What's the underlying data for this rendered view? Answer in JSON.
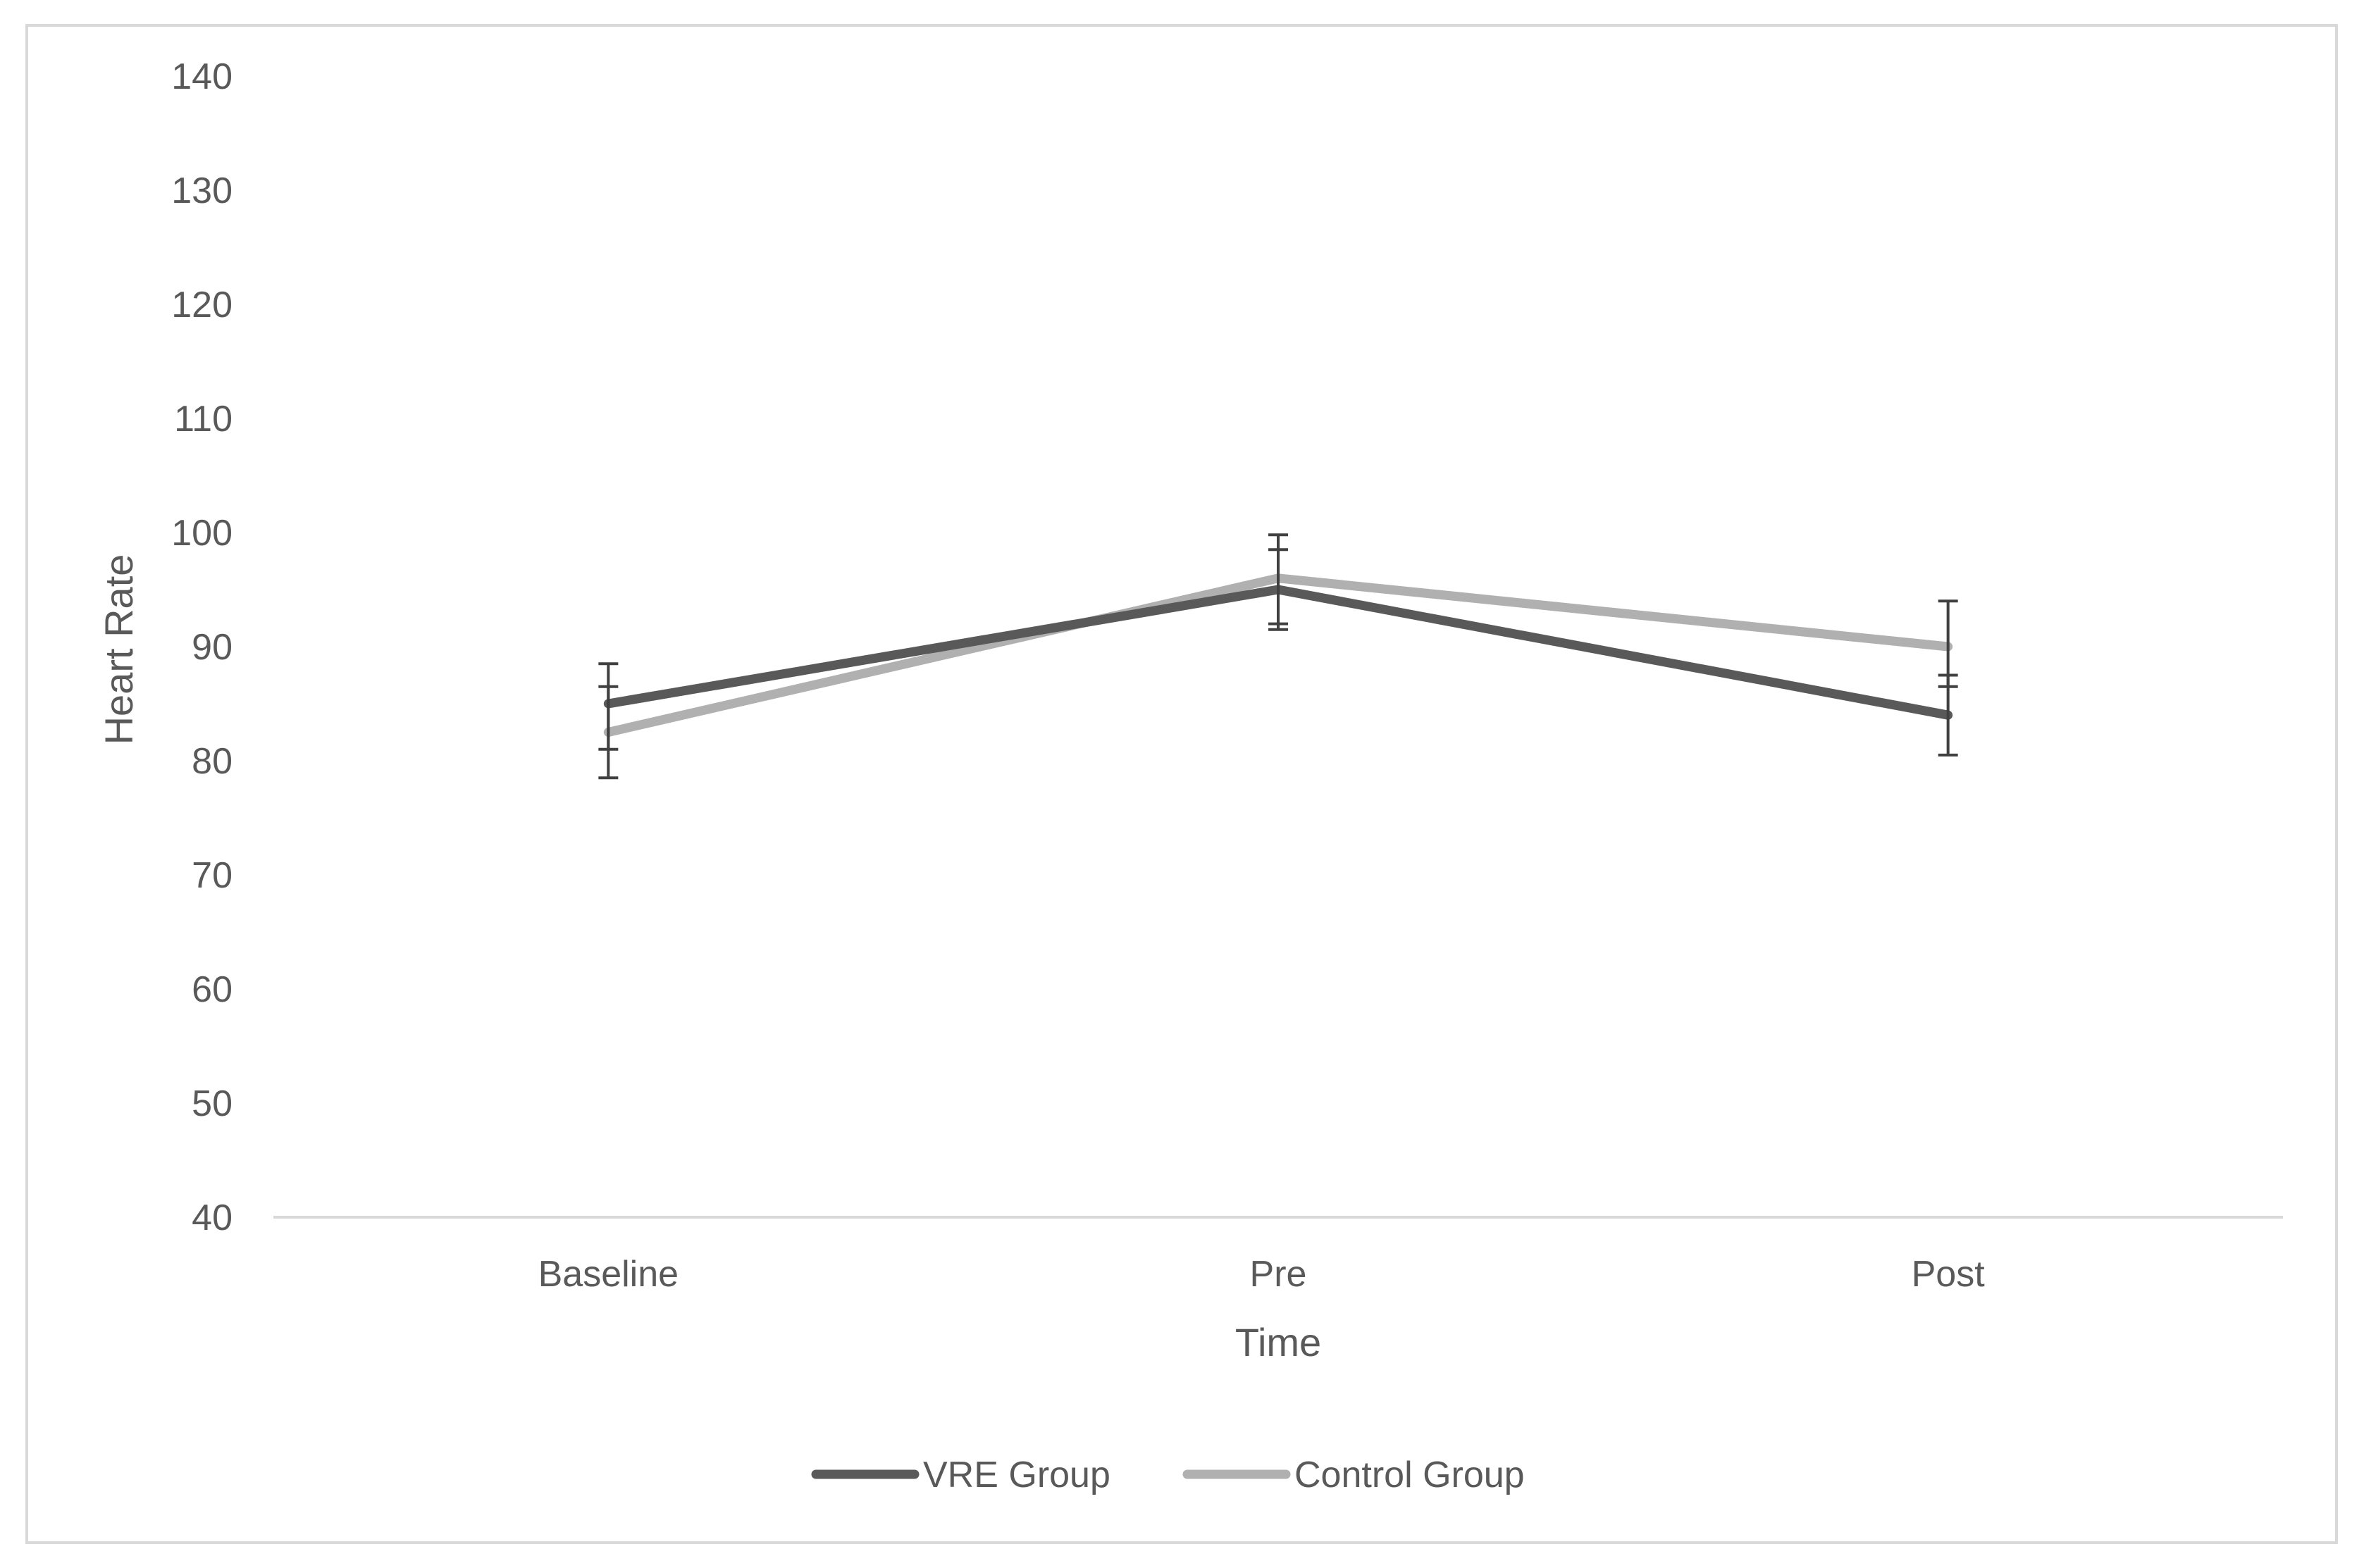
{
  "chart_data": {
    "type": "line",
    "title": "",
    "xlabel": "Time",
    "ylabel": "Heart Rate",
    "categories": [
      "Baseline",
      "Pre",
      "Post"
    ],
    "ylim": [
      40,
      140
    ],
    "yticks": [
      40,
      50,
      60,
      70,
      80,
      90,
      100,
      110,
      120,
      130,
      140
    ],
    "grid": false,
    "legend_position": "bottom",
    "series": [
      {
        "name": "VRE Group",
        "color": "#595959",
        "values": [
          85,
          95,
          84
        ],
        "error_low": [
          81,
          92,
          80.5
        ],
        "error_high": [
          88.5,
          98.5,
          87.5
        ]
      },
      {
        "name": "Control Group",
        "color": "#b0b0b0",
        "values": [
          82.5,
          96,
          90
        ],
        "error_low": [
          78.5,
          91.5,
          86.5
        ],
        "error_high": [
          86.5,
          99.8,
          94
        ]
      }
    ],
    "colors": {
      "axis_line": "#d9d9d9",
      "frame": "#d9d9d9",
      "tick_text": "#595959",
      "error_bar": "#404040"
    }
  }
}
